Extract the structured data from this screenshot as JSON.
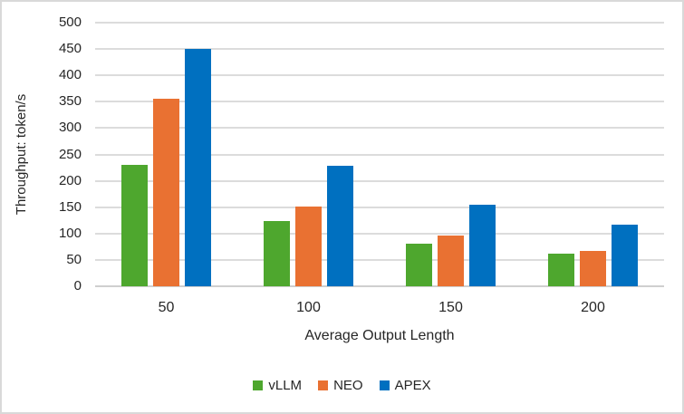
{
  "chart_data": {
    "type": "bar",
    "categories": [
      "50",
      "100",
      "150",
      "200"
    ],
    "series": [
      {
        "name": "vLLM",
        "color": "#4EA72E",
        "values": [
          230,
          123,
          81,
          62
        ]
      },
      {
        "name": "NEO",
        "color": "#E97132",
        "values": [
          356,
          152,
          96,
          67
        ]
      },
      {
        "name": "APEX",
        "color": "#0070C0",
        "values": [
          451,
          228,
          155,
          117
        ]
      }
    ],
    "title": "",
    "xlabel": "Average Output Length",
    "ylabel": "Throughput: token/s",
    "ylim": [
      0,
      500
    ],
    "ytick_step": 50,
    "grid": true,
    "legend_position": "bottom",
    "colors": {
      "gridline": "#DCDCDC",
      "axis_line": "#CFCFCF",
      "text": "#262626",
      "background": "#FFFFFF",
      "border": "#D9D9D9"
    }
  }
}
